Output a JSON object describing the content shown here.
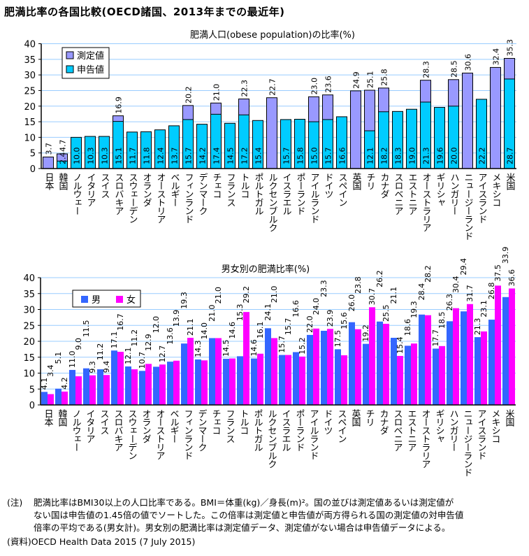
{
  "title": "肥満比率の各国比較(OECD諸国、2013年までの最近年)",
  "note": {
    "label": "(注)",
    "lines": [
      "肥満比率はBMI30以上の人口比率である。BMI＝体重(kg)／身長(m)²。国の並びは測定値あるいは測定値が",
      "ない国は申告値の1.45倍の値でソートした。この倍率は測定値と申告値が両方得られる国の測定値の対申告値",
      "倍率の平均である(男女計)。男女別の肥満比率は測定値データ、測定値がない場合は申告値データによる。"
    ]
  },
  "source": "(資料)OECD Health Data 2015 (7 July 2015)",
  "chart_data": [
    {
      "type": "bar",
      "title": "肥満人口(obese population)の比率(%)",
      "ylim": [
        0,
        40
      ],
      "yticks": [
        0,
        5,
        10,
        15,
        20,
        25,
        30,
        35,
        40
      ],
      "grid": true,
      "legend_position": "top-left",
      "categories": [
        "日本",
        "韓国",
        "ノルウェー",
        "イタリア",
        "スイス",
        "スロバキア",
        "スウェーデン",
        "オランダ",
        "オーストリア",
        "ベルギー",
        "フィンランド",
        "デンマーク",
        "チェコ",
        "フランス",
        "トルコ",
        "ポルトガル",
        "ルクセンブルク",
        "イスラエル",
        "ポーランド",
        "アイルランド",
        "ドイツ",
        "スペイン",
        "英国",
        "チリ",
        "カナダ",
        "スロベニア",
        "エストニア",
        "オーストラリア",
        "ギリシャ",
        "ハンガリー",
        "ニュージーランド",
        "アイスランド",
        "メキシコ",
        "米国"
      ],
      "series": [
        {
          "name": "測定値",
          "color": "#9999ff",
          "values": [
            3.7,
            4.7,
            null,
            null,
            null,
            16.9,
            null,
            null,
            null,
            null,
            20.2,
            null,
            21.0,
            null,
            22.3,
            null,
            22.7,
            null,
            null,
            23.0,
            23.6,
            null,
            24.9,
            25.1,
            25.8,
            null,
            null,
            28.3,
            null,
            28.5,
            30.6,
            null,
            32.4,
            35.3
          ]
        },
        {
          "name": "申告値",
          "color": "#00ccff",
          "values": [
            null,
            2.4,
            10.0,
            10.3,
            10.3,
            15.1,
            11.7,
            11.8,
            12.4,
            13.7,
            15.7,
            14.2,
            17.4,
            14.5,
            17.2,
            15.4,
            null,
            15.7,
            15.8,
            15.0,
            15.7,
            16.6,
            null,
            12.1,
            18.2,
            18.3,
            19.0,
            21.3,
            19.6,
            20.0,
            null,
            22.2,
            null,
            28.7
          ]
        }
      ]
    },
    {
      "type": "bar",
      "title": "男女別の肥満比率(%)",
      "ylim": [
        0,
        40
      ],
      "yticks": [
        0,
        5,
        10,
        15,
        20,
        25,
        30,
        35,
        40
      ],
      "grid": true,
      "legend_position": "top-left",
      "categories": [
        "日本",
        "韓国",
        "ノルウェー",
        "イタリア",
        "スイス",
        "スロバキア",
        "スウェーデン",
        "オランダ",
        "オーストリア",
        "ベルギー",
        "フィンランド",
        "デンマーク",
        "チェコ",
        "フランス",
        "トルコ",
        "ポルトガル",
        "ルクセンブルク",
        "イスラエル",
        "ポーランド",
        "アイルランド",
        "ドイツ",
        "スペイン",
        "英国",
        "チリ",
        "カナダ",
        "スロベニア",
        "エストニア",
        "オーストラリア",
        "ギリシャ",
        "ハンガリー",
        "ニュージーランド",
        "アイスランド",
        "メキシコ",
        "米国"
      ],
      "series": [
        {
          "name": "男",
          "color": "#3366ff",
          "values": [
            4.1,
            5.1,
            11.0,
            11.5,
            11.2,
            17.1,
            12.1,
            10.7,
            12.0,
            13.6,
            19.3,
            14.3,
            21.0,
            14.5,
            15.3,
            14.6,
            24.1,
            15.7,
            16.6,
            22.0,
            23.3,
            17.5,
            26.0,
            19.2,
            26.2,
            21.1,
            18.6,
            28.4,
            17.7,
            26.3,
            29.4,
            21.3,
            26.8,
            33.9
          ]
        },
        {
          "name": "女",
          "color": "#ff00ff",
          "values": [
            3.4,
            4.2,
            9.0,
            9.3,
            9.4,
            16.7,
            11.2,
            12.9,
            12.7,
            13.9,
            21.1,
            14.0,
            21.0,
            14.6,
            29.2,
            16.1,
            21.0,
            15.7,
            15.2,
            24.0,
            23.9,
            15.6,
            23.8,
            30.7,
            25.5,
            15.4,
            19.3,
            28.2,
            18.5,
            30.4,
            31.7,
            23.1,
            37.5,
            36.6
          ]
        }
      ]
    }
  ]
}
